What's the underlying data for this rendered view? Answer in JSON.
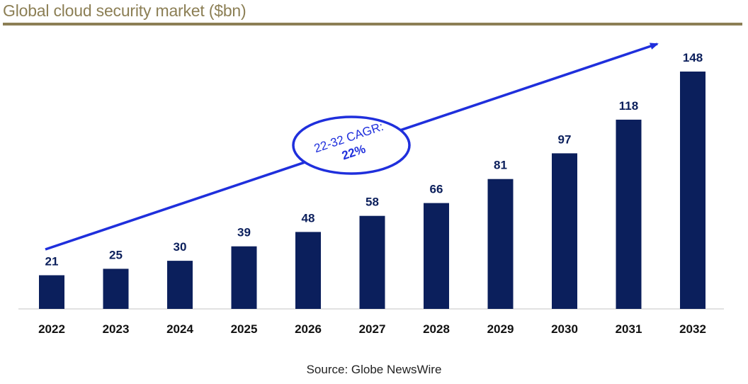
{
  "header": {
    "title": "Global cloud security market ($bn)"
  },
  "chart_data": {
    "type": "bar",
    "title": "Global cloud security market ($bn)",
    "categories": [
      "2022",
      "2023",
      "2024",
      "2025",
      "2026",
      "2027",
      "2028",
      "2029",
      "2030",
      "2031",
      "2032"
    ],
    "values": [
      21,
      25,
      30,
      39,
      48,
      58,
      66,
      81,
      97,
      118,
      148
    ],
    "xlabel": "",
    "ylabel": "",
    "ylim": [
      0,
      148
    ],
    "grid": false,
    "legend": "none",
    "bar_color": "#0b1f5c",
    "annotation": {
      "line1": "22-32 CAGR:",
      "line2": "22%",
      "color": "#1f2fdc"
    }
  },
  "footer": {
    "source": "Source: Globe NewsWire"
  },
  "colors": {
    "accent": "#8c7f55",
    "bar": "#0b1f5c",
    "arrow": "#1f2fdc"
  }
}
